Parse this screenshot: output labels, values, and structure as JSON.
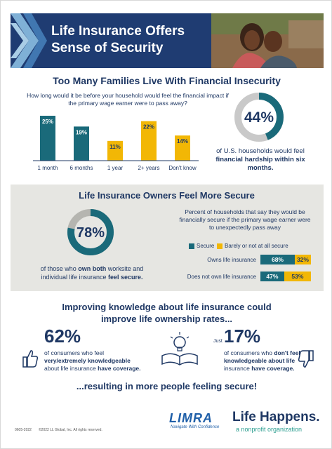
{
  "header": {
    "title_line1": "Life Insurance Offers",
    "title_line2": "Sense of Security"
  },
  "colors": {
    "navy": "#1f3864",
    "teal": "#1a6a7a",
    "yellow": "#f2b705",
    "gray_band": "#e6e6e2"
  },
  "section1": {
    "title": "Too Many Families Live With Financial Insecurity",
    "question": "How long would it be before your household would feel the financial impact if the primary wage earner were to pass away?",
    "donut_value": "44%",
    "donut_fraction": 0.44,
    "caption_pre": "of U.S. households would feel ",
    "caption_bold": "financial hardship within six months."
  },
  "chart_data": [
    {
      "type": "bar",
      "categories": [
        "1 month",
        "6 months",
        "1 year",
        "2+ years",
        "Don't know"
      ],
      "values": [
        25,
        19,
        11,
        22,
        14
      ],
      "value_labels": [
        "25%",
        "19%",
        "11%",
        "22%",
        "14%"
      ],
      "colors": [
        "#1a6a7a",
        "#1a6a7a",
        "#f2b705",
        "#f2b705",
        "#f2b705"
      ]
    },
    {
      "type": "bar",
      "orientation": "horizontal-stacked",
      "title": "Percent of households that say they would be financially secure if the primary wage earner were to unexpectedly pass away",
      "categories": [
        "Owns life insurance",
        "Does not own life insurance"
      ],
      "series": [
        {
          "name": "Secure",
          "values": [
            68,
            47
          ],
          "labels": [
            "68%",
            "47%"
          ],
          "color": "#1a6a7a"
        },
        {
          "name": "Barely or not at all secure",
          "values": [
            32,
            53
          ],
          "labels": [
            "32%",
            "53%"
          ],
          "color": "#f2b705"
        }
      ]
    }
  ],
  "section2": {
    "title": "Life Insurance Owners Feel More Secure",
    "donut_value": "78%",
    "donut_fraction": 0.78,
    "caption_line1_pre": "of those who ",
    "caption_line1_bold": "own both",
    "caption_line1_post": " worksite and",
    "caption_line2_pre": "individual life insurance ",
    "caption_line2_bold": "feel secure."
  },
  "section3": {
    "title_line1": "Improving knowledge about life insurance could",
    "title_line2": "improve life ownership rates...",
    "stat1_value": "62%",
    "stat1_line1": "of consumers who feel",
    "stat1_line2": "very/extremely knowledgeable",
    "stat1_line3_pre": "about life insurance ",
    "stat1_line3_bold": "have coverage.",
    "stat2_just": "Just",
    "stat2_value": "17%",
    "stat2_line1_pre": "of consumers who ",
    "stat2_line1_bold": "don't feel",
    "stat2_line2": "knowledgeable about life",
    "stat2_line3_pre": "insurance ",
    "stat2_line3_bold": "have coverage.",
    "closing": "...resulting in more people feeling secure!"
  },
  "footer": {
    "code": "0605-2022",
    "copyright": "©2022 LL Global, Inc. All rights reserved.",
    "limra": "LIMRA",
    "limra_tag": "Navigate With Confidence",
    "lh": "Life Happens.",
    "lh_tag": "a nonprofit organization"
  }
}
